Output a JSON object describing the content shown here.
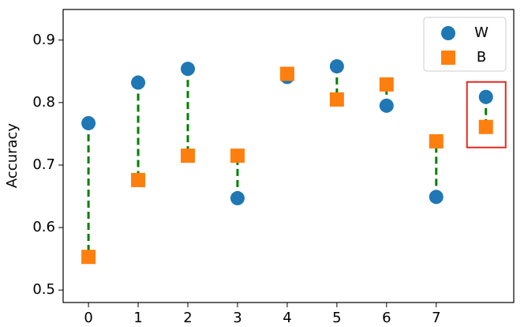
{
  "chart_data": {
    "type": "scatter",
    "y_label": "Accuracy",
    "x": [
      0,
      1,
      2,
      3,
      4,
      5,
      6,
      7,
      8
    ],
    "series": [
      {
        "name": "W",
        "color": "#1f77b4",
        "marker": "circle",
        "values": [
          0.767,
          0.832,
          0.854,
          0.647,
          0.841,
          0.858,
          0.795,
          0.649,
          0.809
        ]
      },
      {
        "name": "B",
        "color": "#ff7f0e",
        "marker": "square",
        "values": [
          0.553,
          0.676,
          0.715,
          0.715,
          0.846,
          0.805,
          0.829,
          0.738,
          0.761
        ]
      }
    ],
    "connector_color": "#008000",
    "highlight_index": 8,
    "highlight_color": "#e8281c",
    "xlim": [
      -0.51,
      8.56
    ],
    "ylim": [
      0.48,
      0.949
    ],
    "xticks": [
      0,
      1,
      2,
      3,
      4,
      5,
      6,
      7
    ],
    "yticks": [
      0.5,
      0.6,
      0.7,
      0.8,
      0.9
    ],
    "legend": "upper right"
  }
}
